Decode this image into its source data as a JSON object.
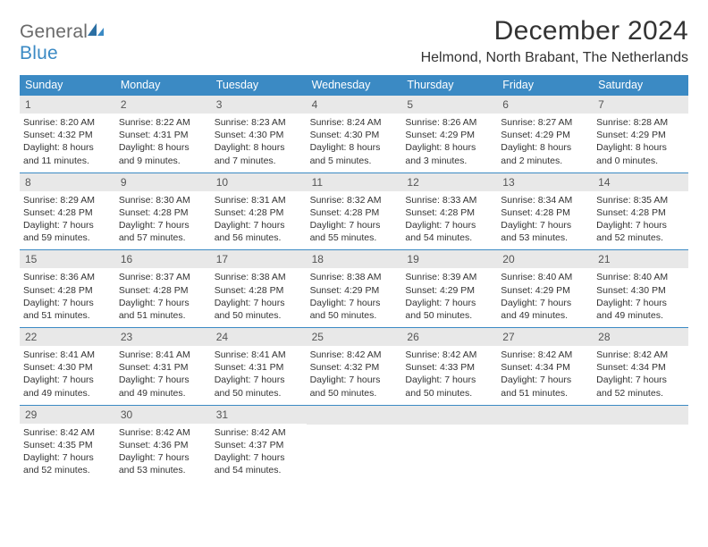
{
  "logo": {
    "general": "General",
    "blue": "Blue"
  },
  "title": "December 2024",
  "location": "Helmond, North Brabant, The Netherlands",
  "colors": {
    "header_bg": "#3b8ac4",
    "header_text": "#ffffff",
    "daynum_bg": "#e8e8e8",
    "rule": "#3b8ac4",
    "body_text": "#333333",
    "logo_gray": "#6a6a6a",
    "logo_blue": "#3b8ac4",
    "page_bg": "#ffffff"
  },
  "weekdays": [
    "Sunday",
    "Monday",
    "Tuesday",
    "Wednesday",
    "Thursday",
    "Friday",
    "Saturday"
  ],
  "weeks": [
    [
      {
        "n": "1",
        "sr": "Sunrise: 8:20 AM",
        "ss": "Sunset: 4:32 PM",
        "d1": "Daylight: 8 hours",
        "d2": "and 11 minutes."
      },
      {
        "n": "2",
        "sr": "Sunrise: 8:22 AM",
        "ss": "Sunset: 4:31 PM",
        "d1": "Daylight: 8 hours",
        "d2": "and 9 minutes."
      },
      {
        "n": "3",
        "sr": "Sunrise: 8:23 AM",
        "ss": "Sunset: 4:30 PM",
        "d1": "Daylight: 8 hours",
        "d2": "and 7 minutes."
      },
      {
        "n": "4",
        "sr": "Sunrise: 8:24 AM",
        "ss": "Sunset: 4:30 PM",
        "d1": "Daylight: 8 hours",
        "d2": "and 5 minutes."
      },
      {
        "n": "5",
        "sr": "Sunrise: 8:26 AM",
        "ss": "Sunset: 4:29 PM",
        "d1": "Daylight: 8 hours",
        "d2": "and 3 minutes."
      },
      {
        "n": "6",
        "sr": "Sunrise: 8:27 AM",
        "ss": "Sunset: 4:29 PM",
        "d1": "Daylight: 8 hours",
        "d2": "and 2 minutes."
      },
      {
        "n": "7",
        "sr": "Sunrise: 8:28 AM",
        "ss": "Sunset: 4:29 PM",
        "d1": "Daylight: 8 hours",
        "d2": "and 0 minutes."
      }
    ],
    [
      {
        "n": "8",
        "sr": "Sunrise: 8:29 AM",
        "ss": "Sunset: 4:28 PM",
        "d1": "Daylight: 7 hours",
        "d2": "and 59 minutes."
      },
      {
        "n": "9",
        "sr": "Sunrise: 8:30 AM",
        "ss": "Sunset: 4:28 PM",
        "d1": "Daylight: 7 hours",
        "d2": "and 57 minutes."
      },
      {
        "n": "10",
        "sr": "Sunrise: 8:31 AM",
        "ss": "Sunset: 4:28 PM",
        "d1": "Daylight: 7 hours",
        "d2": "and 56 minutes."
      },
      {
        "n": "11",
        "sr": "Sunrise: 8:32 AM",
        "ss": "Sunset: 4:28 PM",
        "d1": "Daylight: 7 hours",
        "d2": "and 55 minutes."
      },
      {
        "n": "12",
        "sr": "Sunrise: 8:33 AM",
        "ss": "Sunset: 4:28 PM",
        "d1": "Daylight: 7 hours",
        "d2": "and 54 minutes."
      },
      {
        "n": "13",
        "sr": "Sunrise: 8:34 AM",
        "ss": "Sunset: 4:28 PM",
        "d1": "Daylight: 7 hours",
        "d2": "and 53 minutes."
      },
      {
        "n": "14",
        "sr": "Sunrise: 8:35 AM",
        "ss": "Sunset: 4:28 PM",
        "d1": "Daylight: 7 hours",
        "d2": "and 52 minutes."
      }
    ],
    [
      {
        "n": "15",
        "sr": "Sunrise: 8:36 AM",
        "ss": "Sunset: 4:28 PM",
        "d1": "Daylight: 7 hours",
        "d2": "and 51 minutes."
      },
      {
        "n": "16",
        "sr": "Sunrise: 8:37 AM",
        "ss": "Sunset: 4:28 PM",
        "d1": "Daylight: 7 hours",
        "d2": "and 51 minutes."
      },
      {
        "n": "17",
        "sr": "Sunrise: 8:38 AM",
        "ss": "Sunset: 4:28 PM",
        "d1": "Daylight: 7 hours",
        "d2": "and 50 minutes."
      },
      {
        "n": "18",
        "sr": "Sunrise: 8:38 AM",
        "ss": "Sunset: 4:29 PM",
        "d1": "Daylight: 7 hours",
        "d2": "and 50 minutes."
      },
      {
        "n": "19",
        "sr": "Sunrise: 8:39 AM",
        "ss": "Sunset: 4:29 PM",
        "d1": "Daylight: 7 hours",
        "d2": "and 50 minutes."
      },
      {
        "n": "20",
        "sr": "Sunrise: 8:40 AM",
        "ss": "Sunset: 4:29 PM",
        "d1": "Daylight: 7 hours",
        "d2": "and 49 minutes."
      },
      {
        "n": "21",
        "sr": "Sunrise: 8:40 AM",
        "ss": "Sunset: 4:30 PM",
        "d1": "Daylight: 7 hours",
        "d2": "and 49 minutes."
      }
    ],
    [
      {
        "n": "22",
        "sr": "Sunrise: 8:41 AM",
        "ss": "Sunset: 4:30 PM",
        "d1": "Daylight: 7 hours",
        "d2": "and 49 minutes."
      },
      {
        "n": "23",
        "sr": "Sunrise: 8:41 AM",
        "ss": "Sunset: 4:31 PM",
        "d1": "Daylight: 7 hours",
        "d2": "and 49 minutes."
      },
      {
        "n": "24",
        "sr": "Sunrise: 8:41 AM",
        "ss": "Sunset: 4:31 PM",
        "d1": "Daylight: 7 hours",
        "d2": "and 50 minutes."
      },
      {
        "n": "25",
        "sr": "Sunrise: 8:42 AM",
        "ss": "Sunset: 4:32 PM",
        "d1": "Daylight: 7 hours",
        "d2": "and 50 minutes."
      },
      {
        "n": "26",
        "sr": "Sunrise: 8:42 AM",
        "ss": "Sunset: 4:33 PM",
        "d1": "Daylight: 7 hours",
        "d2": "and 50 minutes."
      },
      {
        "n": "27",
        "sr": "Sunrise: 8:42 AM",
        "ss": "Sunset: 4:34 PM",
        "d1": "Daylight: 7 hours",
        "d2": "and 51 minutes."
      },
      {
        "n": "28",
        "sr": "Sunrise: 8:42 AM",
        "ss": "Sunset: 4:34 PM",
        "d1": "Daylight: 7 hours",
        "d2": "and 52 minutes."
      }
    ],
    [
      {
        "n": "29",
        "sr": "Sunrise: 8:42 AM",
        "ss": "Sunset: 4:35 PM",
        "d1": "Daylight: 7 hours",
        "d2": "and 52 minutes."
      },
      {
        "n": "30",
        "sr": "Sunrise: 8:42 AM",
        "ss": "Sunset: 4:36 PM",
        "d1": "Daylight: 7 hours",
        "d2": "and 53 minutes."
      },
      {
        "n": "31",
        "sr": "Sunrise: 8:42 AM",
        "ss": "Sunset: 4:37 PM",
        "d1": "Daylight: 7 hours",
        "d2": "and 54 minutes."
      },
      {
        "empty": true
      },
      {
        "empty": true
      },
      {
        "empty": true
      },
      {
        "empty": true
      }
    ]
  ]
}
